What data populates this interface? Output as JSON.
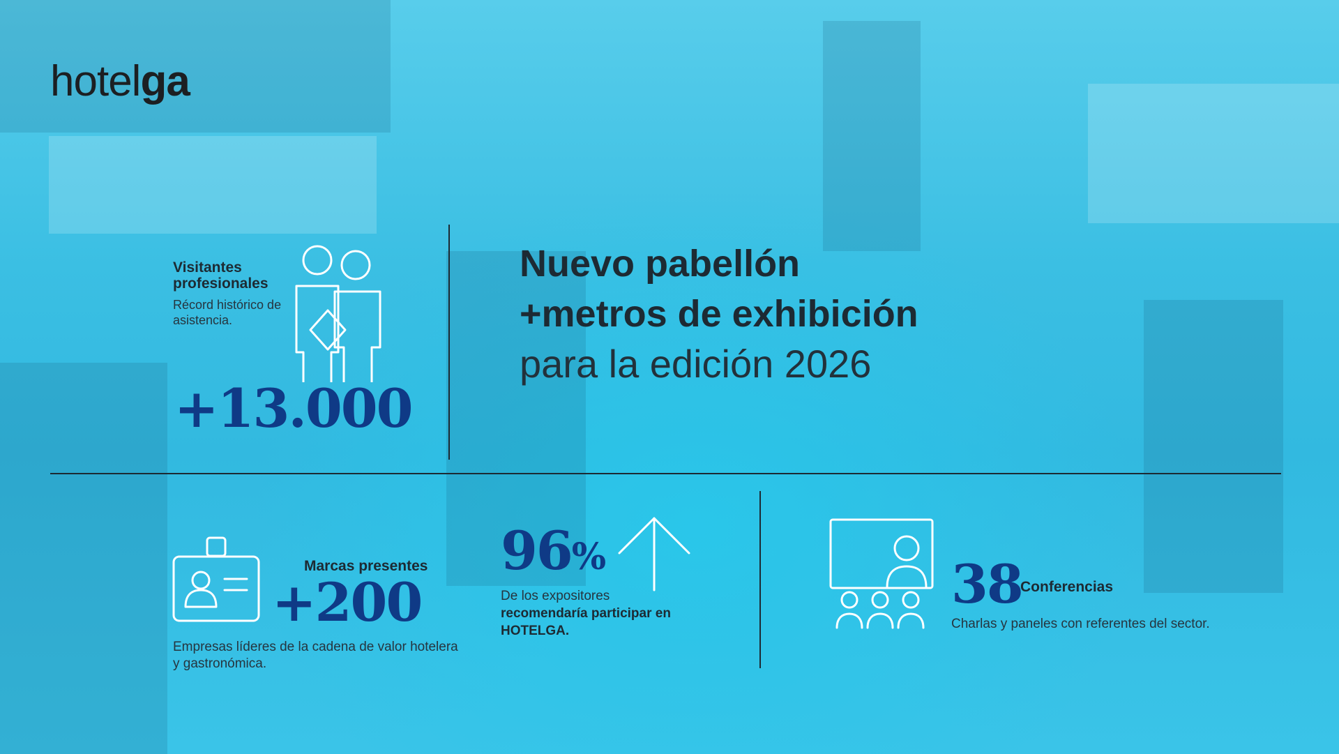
{
  "brand": {
    "logo_light": "hotel",
    "logo_bold": "ga"
  },
  "colors": {
    "background": "#3cc3e6",
    "number": "#0f3a86",
    "text": "#1d2a33",
    "icon": "#ffffff"
  },
  "visitors": {
    "title": "Visitantes profesionales",
    "subtitle": "Récord histórico de asistencia.",
    "value": "+13.000",
    "icon": "people-icon"
  },
  "headline": {
    "line1": "Nuevo pabellón",
    "line2": "+metros de exhibición",
    "line3": "para la edición 2026"
  },
  "brands": {
    "title": "Marcas presentes",
    "value": "+200",
    "description": "Empresas líderes de la cadena de valor hotelera y gastronómica.",
    "icon": "id-badge-icon"
  },
  "exhibitors": {
    "value": "96",
    "unit": "%",
    "desc_plain": "De los expositores",
    "desc_bold": "recomendaría participar en HOTELGA.",
    "icon": "arrow-up-icon"
  },
  "conferences": {
    "value": "38",
    "title": "Conferencias",
    "description": "Charlas y paneles con referentes del sector.",
    "icon": "presentation-icon"
  }
}
